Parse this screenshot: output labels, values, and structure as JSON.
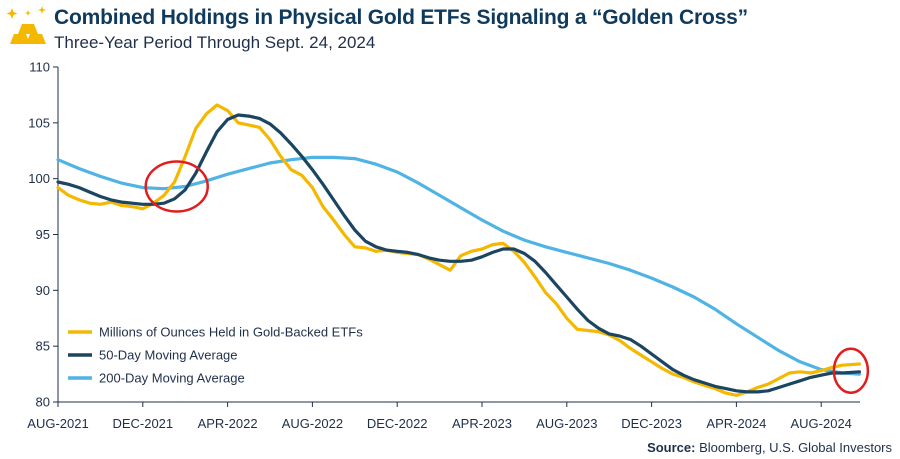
{
  "header": {
    "title": "Combined Holdings in Physical Gold ETFs Signaling a “Golden Cross”",
    "subtitle": "Three-Year Period Through Sept. 24, 2024"
  },
  "footer": {
    "source_label": "Source:",
    "source_text": " Bloomberg, U.S. Global Investors"
  },
  "colors": {
    "gold": "#f5b800",
    "ma50": "#1b4560",
    "ma200": "#4fb3e3",
    "highlight": "#e01e1e",
    "axis": "#1f2f4a"
  },
  "chart_data": {
    "type": "line",
    "title": "Combined Holdings in Physical Gold ETFs Signaling a “Golden Cross”",
    "subtitle": "Three-Year Period Through Sept. 24, 2024",
    "xlabel": "",
    "ylabel": "",
    "ylim": [
      80,
      110
    ],
    "yticks": [
      80,
      85,
      90,
      95,
      100,
      105,
      110
    ],
    "xlim": [
      0,
      37.8
    ],
    "xtick_positions": [
      0,
      4,
      8,
      12,
      16,
      20,
      24,
      28,
      32,
      36
    ],
    "xtick_labels": [
      "AUG-2021",
      "DEC-2021",
      "APR-2022",
      "AUG-2022",
      "DEC-2022",
      "APR-2023",
      "AUG-2023",
      "DEC-2023",
      "APR-2024",
      "AUG-2024"
    ],
    "x_unit": "months since Aug-2021",
    "grid": false,
    "legend_position": "bottom-left",
    "series": [
      {
        "name": "Millions of Ounces Held in Gold-Backed ETFs",
        "color": "#f5b800",
        "x": [
          0,
          0.5,
          1,
          1.5,
          2,
          2.5,
          3,
          3.5,
          4,
          4.5,
          5,
          5.5,
          6,
          6.5,
          7,
          7.5,
          8,
          8.5,
          9,
          9.5,
          10,
          10.5,
          11,
          11.5,
          12,
          12.5,
          13,
          13.5,
          14,
          14.5,
          15,
          15.5,
          16,
          16.5,
          17,
          17.5,
          18,
          18.5,
          19,
          19.5,
          20,
          20.5,
          21,
          21.5,
          22,
          22.5,
          23,
          23.5,
          24,
          24.5,
          25,
          25.5,
          26,
          26.5,
          27,
          27.5,
          28,
          28.5,
          29,
          29.5,
          30,
          30.5,
          31,
          31.5,
          32,
          32.5,
          33,
          33.5,
          34,
          34.5,
          35,
          35.5,
          36,
          36.5,
          37,
          37.8
        ],
        "y": [
          99.2,
          98.5,
          98.1,
          97.8,
          97.7,
          97.9,
          97.6,
          97.5,
          97.3,
          97.8,
          98.5,
          99.7,
          102,
          104.5,
          105.8,
          106.6,
          106.1,
          105,
          104.8,
          104.6,
          103.5,
          102,
          100.8,
          100.3,
          99.2,
          97.5,
          96.3,
          95,
          93.9,
          93.8,
          93.5,
          93.6,
          93.4,
          93.3,
          93.2,
          92.8,
          92.3,
          91.8,
          93.1,
          93.5,
          93.7,
          94.1,
          94.2,
          93.5,
          92.5,
          91.2,
          89.8,
          88.8,
          87.5,
          86.5,
          86.4,
          86.3,
          86,
          85.5,
          84.8,
          84.2,
          83.6,
          83.0,
          82.5,
          82.2,
          81.8,
          81.5,
          81.2,
          80.8,
          80.6,
          80.9,
          81.3,
          81.6,
          82.1,
          82.6,
          82.7,
          82.6,
          82.8,
          83.1,
          83.3,
          83.4
        ]
      },
      {
        "name": "50-Day Moving Average",
        "color": "#1b4560",
        "x": [
          0,
          0.5,
          1,
          1.5,
          2,
          2.5,
          3,
          3.5,
          4,
          4.5,
          5,
          5.5,
          6,
          6.5,
          7,
          7.5,
          8,
          8.5,
          9,
          9.5,
          10,
          10.5,
          11,
          11.5,
          12,
          12.5,
          13,
          13.5,
          14,
          14.5,
          15,
          15.5,
          16,
          16.5,
          17,
          17.5,
          18,
          18.5,
          19,
          19.5,
          20,
          20.5,
          21,
          21.5,
          22,
          22.5,
          23,
          23.5,
          24,
          24.5,
          25,
          25.5,
          26,
          26.5,
          27,
          27.5,
          28,
          28.5,
          29,
          29.5,
          30,
          30.5,
          31,
          31.5,
          32,
          32.5,
          33,
          33.5,
          34,
          34.5,
          35,
          35.5,
          36,
          36.5,
          37,
          37.8
        ],
        "y": [
          99.7,
          99.5,
          99.2,
          98.8,
          98.4,
          98.1,
          97.9,
          97.8,
          97.7,
          97.7,
          97.8,
          98.2,
          99,
          100.5,
          102.4,
          104.2,
          105.3,
          105.7,
          105.6,
          105.4,
          104.9,
          104.1,
          103.1,
          102.0,
          100.8,
          99.5,
          98.1,
          96.7,
          95.4,
          94.4,
          93.9,
          93.6,
          93.5,
          93.4,
          93.2,
          92.9,
          92.7,
          92.6,
          92.6,
          92.7,
          93.0,
          93.4,
          93.7,
          93.7,
          93.3,
          92.6,
          91.6,
          90.5,
          89.4,
          88.3,
          87.3,
          86.6,
          86.1,
          85.9,
          85.6,
          85.0,
          84.3,
          83.6,
          82.9,
          82.4,
          82.0,
          81.7,
          81.4,
          81.2,
          81.0,
          80.9,
          80.9,
          81.0,
          81.3,
          81.6,
          81.9,
          82.2,
          82.4,
          82.6,
          82.6,
          82.7
        ]
      },
      {
        "name": "200-Day Moving Average",
        "color": "#4fb3e3",
        "x": [
          0,
          1,
          2,
          3,
          4,
          5,
          6,
          7,
          8,
          9,
          10,
          11,
          12,
          13,
          14,
          15,
          16,
          17,
          18,
          19,
          20,
          21,
          22,
          23,
          24,
          25,
          26,
          27,
          28,
          29,
          30,
          31,
          32,
          33,
          34,
          35,
          36,
          37,
          37.8
        ],
        "y": [
          101.7,
          100.9,
          100.2,
          99.6,
          99.2,
          99.1,
          99.3,
          99.8,
          100.4,
          100.9,
          101.4,
          101.7,
          101.9,
          101.9,
          101.8,
          101.3,
          100.6,
          99.6,
          98.5,
          97.4,
          96.3,
          95.3,
          94.5,
          93.9,
          93.4,
          92.9,
          92.4,
          91.8,
          91.1,
          90.3,
          89.4,
          88.3,
          87.0,
          85.8,
          84.6,
          83.6,
          82.9,
          82.6,
          82.5
        ]
      }
    ],
    "annotations": [
      {
        "type": "circle",
        "color": "#e01e1e",
        "cx": 5.6,
        "cy": 99.3,
        "label": ""
      },
      {
        "type": "circle",
        "color": "#e01e1e",
        "cx": 37.4,
        "cy": 82.8,
        "label": ""
      }
    ]
  }
}
